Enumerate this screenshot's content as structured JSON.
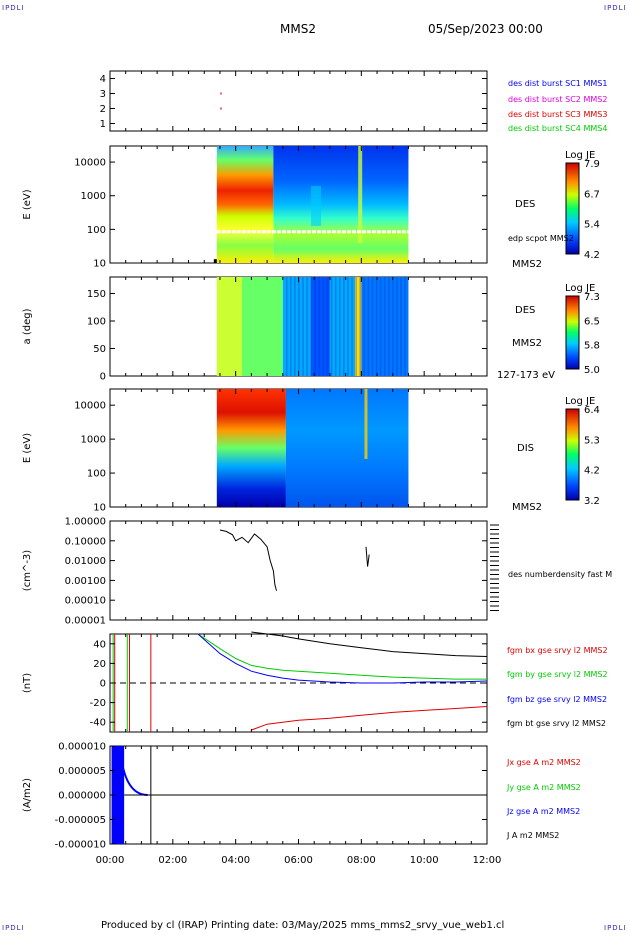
{
  "corners": {
    "tl": "IPDLI",
    "tr": "IPDLI",
    "bl": "IPDLI",
    "br": "IPDLI"
  },
  "header": {
    "spacecraft": "MMS2",
    "datetime": "05/Sep/2023 00:00"
  },
  "footer": "Produced by cl (IRAP)   Printing date: 03/May/2025   mms_mms2_srvy_vue_web1.cl",
  "colors": {
    "blue": "#0000ff",
    "magenta": "#e000e0",
    "red": "#e00000",
    "green": "#00cc00",
    "black": "#000000"
  },
  "chart_data": [
    {
      "type": "scatter",
      "name": "burst-availability",
      "legend": [
        {
          "label": "des dist burst SC1 MMS1",
          "color": "#0000ff"
        },
        {
          "label": "des dist burst SC2 MMS2",
          "color": "#e000e0"
        },
        {
          "label": "des dist burst SC3 MMS3",
          "color": "#e00000"
        },
        {
          "label": "des dist burst SC4 MMS4",
          "color": "#00cc00"
        }
      ],
      "y_ticks": [
        "4",
        "3",
        "2",
        "1"
      ],
      "ylim": [
        0.5,
        4.5
      ],
      "points": [
        {
          "x_hour": 3.53,
          "y": 3,
          "color": "#e00000"
        },
        {
          "x_hour": 3.53,
          "y": 2,
          "color": "#e00000"
        }
      ]
    },
    {
      "type": "heatmap",
      "name": "des-energy-spectrogram",
      "ylabel": "E (eV)",
      "y_ticks": [
        "10000",
        "1000",
        "100",
        "10"
      ],
      "scale": "log",
      "ylim": [
        10,
        30000
      ],
      "side_label": "DES",
      "side_label_bottom": "MMS2",
      "overlay_label": "edp scpot MMS2",
      "colorbar": {
        "title": "Log JE",
        "ticks": [
          "7.9",
          "6.7",
          "5.4",
          "4.2"
        ]
      },
      "x_range_hours": [
        3.4,
        9.5
      ],
      "segments": [
        {
          "from": 3.4,
          "to": 5.2,
          "top": "#4488ff",
          "mid": "#ff4400",
          "low": "#ddff00"
        },
        {
          "from": 5.2,
          "to": 9.5,
          "top": "#0044ff",
          "mid": "#00aaff",
          "low": "#66ff66"
        }
      ]
    },
    {
      "type": "heatmap",
      "name": "des-pitch-angle",
      "ylabel": "a (deg)",
      "y_ticks": [
        "150",
        "100",
        "50",
        "0"
      ],
      "ylim": [
        0,
        180
      ],
      "side_label": "DES",
      "side_label_bottom": "MMS2",
      "energy_label": "127-173 eV",
      "colorbar": {
        "title": "Log JE",
        "ticks": [
          "7.3",
          "6.5",
          "5.8",
          "5.0"
        ]
      },
      "x_range_hours": [
        3.4,
        9.5
      ]
    },
    {
      "type": "heatmap",
      "name": "dis-energy-spectrogram",
      "ylabel": "E (eV)",
      "y_ticks": [
        "10000",
        "1000",
        "100",
        "10"
      ],
      "scale": "log",
      "ylim": [
        10,
        30000
      ],
      "side_label": "DIS",
      "side_label_bottom": "MMS2",
      "colorbar": {
        "title": "Log JE",
        "ticks": [
          "6.4",
          "5.3",
          "4.2",
          "3.2"
        ]
      },
      "x_range_hours": [
        3.4,
        9.5
      ]
    },
    {
      "type": "line",
      "name": "number-density",
      "ylabel": "(cm^-3)",
      "y_ticks": [
        "1.00000",
        "0.10000",
        "0.01000",
        "0.00100",
        "0.00010",
        "0.00001"
      ],
      "scale": "log",
      "ylim": [
        1e-05,
        1.0
      ],
      "legend": [
        {
          "label": "des numberdensity fast M",
          "color": "#000000"
        }
      ],
      "series": [
        {
          "x": [
            3.5,
            3.7,
            3.9,
            4.0,
            4.2,
            4.4,
            4.6,
            4.8,
            5.0,
            5.1,
            5.2,
            5.25,
            5.3
          ],
          "y": [
            0.35,
            0.3,
            0.2,
            0.1,
            0.15,
            0.08,
            0.22,
            0.12,
            0.05,
            0.01,
            0.003,
            0.0006,
            0.0003
          ]
        },
        {
          "x": [
            8.15,
            8.2,
            8.25
          ],
          "y": [
            0.05,
            0.005,
            0.02
          ]
        }
      ]
    },
    {
      "type": "line",
      "name": "magnetic-field",
      "ylabel": "(nT)",
      "y_ticks": [
        "40",
        "20",
        "0",
        "-20",
        "-40"
      ],
      "ylim": [
        -50,
        50
      ],
      "legend": [
        {
          "label": "fgm bx gse srvy l2 MMS2",
          "color": "#e00000"
        },
        {
          "label": "fgm by gse srvy l2 MMS2",
          "color": "#00cc00"
        },
        {
          "label": "fgm bz gse srvy l2 MMS2",
          "color": "#0000ff"
        },
        {
          "label": "fgm bt gse srvy l2 MMS2",
          "color": "#000000"
        }
      ],
      "x": [
        2.8,
        3.5,
        4.0,
        4.5,
        5.0,
        5.5,
        6.0,
        7.0,
        8.0,
        9.0,
        10.0,
        11.0,
        12.0
      ],
      "series": [
        {
          "color": "#e00000",
          "y": [
            null,
            null,
            null,
            -48,
            -42,
            -40,
            -38,
            -36,
            -33,
            -30,
            -28,
            -26,
            -24
          ]
        },
        {
          "color": "#00cc00",
          "y": [
            50,
            35,
            25,
            18,
            15,
            13,
            12,
            10,
            8,
            6,
            5,
            4,
            4
          ]
        },
        {
          "color": "#0000ff",
          "y": [
            50,
            30,
            20,
            12,
            8,
            5,
            3,
            1,
            0,
            0,
            1,
            1,
            2
          ]
        },
        {
          "color": "#000000",
          "y": [
            null,
            null,
            null,
            52,
            50,
            48,
            45,
            40,
            36,
            32,
            30,
            28,
            27
          ]
        }
      ]
    },
    {
      "type": "line",
      "name": "current-density",
      "ylabel": "(A/m2)",
      "y_ticks": [
        "0.000010",
        "0.000005",
        "0.000000",
        "-0.000005",
        "-0.000010"
      ],
      "ylim": [
        -1e-05,
        1e-05
      ],
      "legend": [
        {
          "label": "Jx gse A m2 MMS2",
          "color": "#e00000"
        },
        {
          "label": "Jy gse A m2 MMS2",
          "color": "#00cc00"
        },
        {
          "label": "Jz gse A m2 MMS2",
          "color": "#0000ff"
        },
        {
          "label": "J A m2 MMS2",
          "color": "#000000"
        }
      ]
    }
  ],
  "x_axis": {
    "ticks": [
      "00:00",
      "02:00",
      "04:00",
      "06:00",
      "08:00",
      "10:00",
      "12:00"
    ],
    "xlim_hours": [
      0,
      12
    ]
  }
}
